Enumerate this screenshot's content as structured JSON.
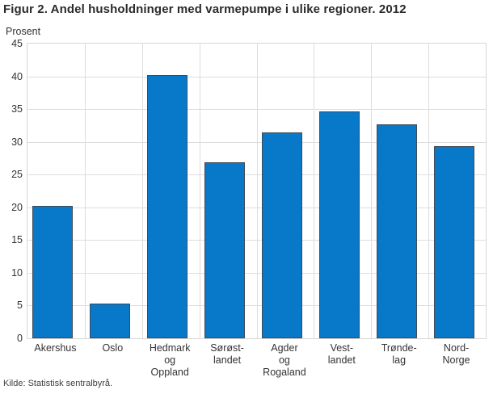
{
  "title": "Figur 2. Andel husholdninger med varmepumpe i ulike regioner. 2012",
  "source": "Kilde: Statistisk sentralbyrå.",
  "colors": {
    "bar_fill": "#0878c8",
    "bar_border": "#3d4c59",
    "gridline": "#dddddd",
    "plot_border": "#d6d6d6",
    "title_text": "#2b2b2b",
    "axis_text": "#333333"
  },
  "chart_data": {
    "type": "bar",
    "title": "Figur 2. Andel husholdninger med varmepumpe i ulike regioner. 2012",
    "xlabel": "",
    "ylabel": "Prosent",
    "ylim": [
      0,
      45
    ],
    "yticks": [
      0,
      5,
      10,
      15,
      20,
      25,
      30,
      35,
      40,
      45
    ],
    "grid": true,
    "legend": false,
    "categories": [
      "Akershus",
      "Oslo",
      "Hedmark og Oppland",
      "Sørøstlandet",
      "Agder og Rogaland",
      "Vestlandet",
      "Trøndelag",
      "Nord-Norge"
    ],
    "category_label_lines": [
      [
        "Akershus"
      ],
      [
        "Oslo"
      ],
      [
        "Hedmark",
        "og",
        "Oppland"
      ],
      [
        "Sørøst-",
        "landet"
      ],
      [
        "Agder",
        "og",
        "Rogaland"
      ],
      [
        "Vest-",
        "landet"
      ],
      [
        "Trønde-",
        "lag"
      ],
      [
        "Nord-",
        "Norge"
      ]
    ],
    "values": [
      20.2,
      5.3,
      40.2,
      26.9,
      31.4,
      34.6,
      32.7,
      29.3
    ]
  }
}
